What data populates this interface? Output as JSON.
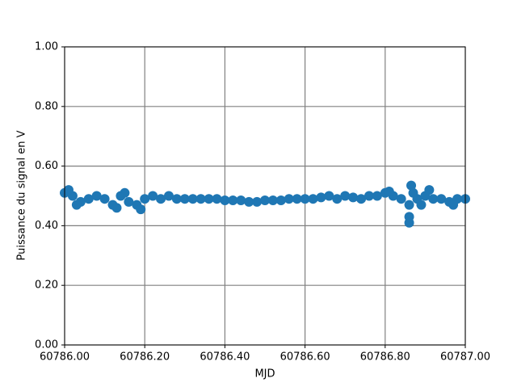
{
  "chart_data": {
    "type": "scatter",
    "x_label": "MJD",
    "y_label": "Puissance du signal en V",
    "x": [
      60786.0,
      60786.02,
      60786.04,
      60786.06,
      60786.08,
      60786.1,
      60786.12,
      60786.14,
      60786.16,
      60786.18,
      60786.2,
      60786.22,
      60786.24,
      60786.26,
      60786.28,
      60786.3,
      60786.32,
      60786.34,
      60786.36,
      60786.38,
      60786.4,
      60786.42,
      60786.44,
      60786.46,
      60786.48,
      60786.5,
      60786.52,
      60786.54,
      60786.56,
      60786.58,
      60786.6,
      60786.62,
      60786.64,
      60786.66,
      60786.68,
      60786.7,
      60786.72,
      60786.74,
      60786.76,
      60786.78,
      60786.8,
      60786.82,
      60786.84,
      60786.86,
      60786.88,
      60786.9,
      60786.92,
      60786.94,
      60786.96,
      60786.98,
      60787.0,
      60786.01,
      60786.03,
      60786.13,
      60786.15,
      60786.19,
      60786.81,
      60786.86,
      60786.86,
      60786.865,
      60786.87,
      60786.89,
      60786.91,
      60786.97
    ],
    "series": [
      {
        "color": "#1f77b4",
        "values": [
          0.51,
          0.5,
          0.48,
          0.49,
          0.5,
          0.49,
          0.47,
          0.5,
          0.48,
          0.47,
          0.49,
          0.5,
          0.49,
          0.5,
          0.49,
          0.49,
          0.49,
          0.49,
          0.49,
          0.49,
          0.485,
          0.485,
          0.485,
          0.48,
          0.48,
          0.485,
          0.485,
          0.485,
          0.49,
          0.49,
          0.49,
          0.49,
          0.495,
          0.5,
          0.49,
          0.5,
          0.495,
          0.49,
          0.5,
          0.5,
          0.51,
          0.5,
          0.49,
          0.47,
          0.49,
          0.5,
          0.49,
          0.49,
          0.48,
          0.49,
          0.49,
          0.52,
          0.47,
          0.46,
          0.51,
          0.455,
          0.515,
          0.41,
          0.43,
          0.535,
          0.51,
          0.47,
          0.52,
          0.47
        ]
      }
    ],
    "xlim": [
      60786.0,
      60787.0
    ],
    "xticks": [
      {
        "value": 60786.0,
        "label": "60786.00"
      },
      {
        "value": 60786.2,
        "label": "60786.20"
      },
      {
        "value": 60786.4,
        "label": "60786.40"
      },
      {
        "value": 60786.6,
        "label": "60786.60"
      },
      {
        "value": 60786.8,
        "label": "60786.80"
      },
      {
        "value": 60787.0,
        "label": "60787.00"
      }
    ],
    "ylim": [
      0,
      1
    ],
    "yticks": [
      {
        "value": 0,
        "label": "0.00"
      },
      {
        "value": 0.2,
        "label": "0.20"
      },
      {
        "value": 0.4,
        "label": "0.40"
      },
      {
        "value": 0.6,
        "label": "0.60"
      },
      {
        "value": 0.8,
        "label": "0.80"
      },
      {
        "value": 1,
        "label": "1.00"
      }
    ],
    "grid": true
  }
}
